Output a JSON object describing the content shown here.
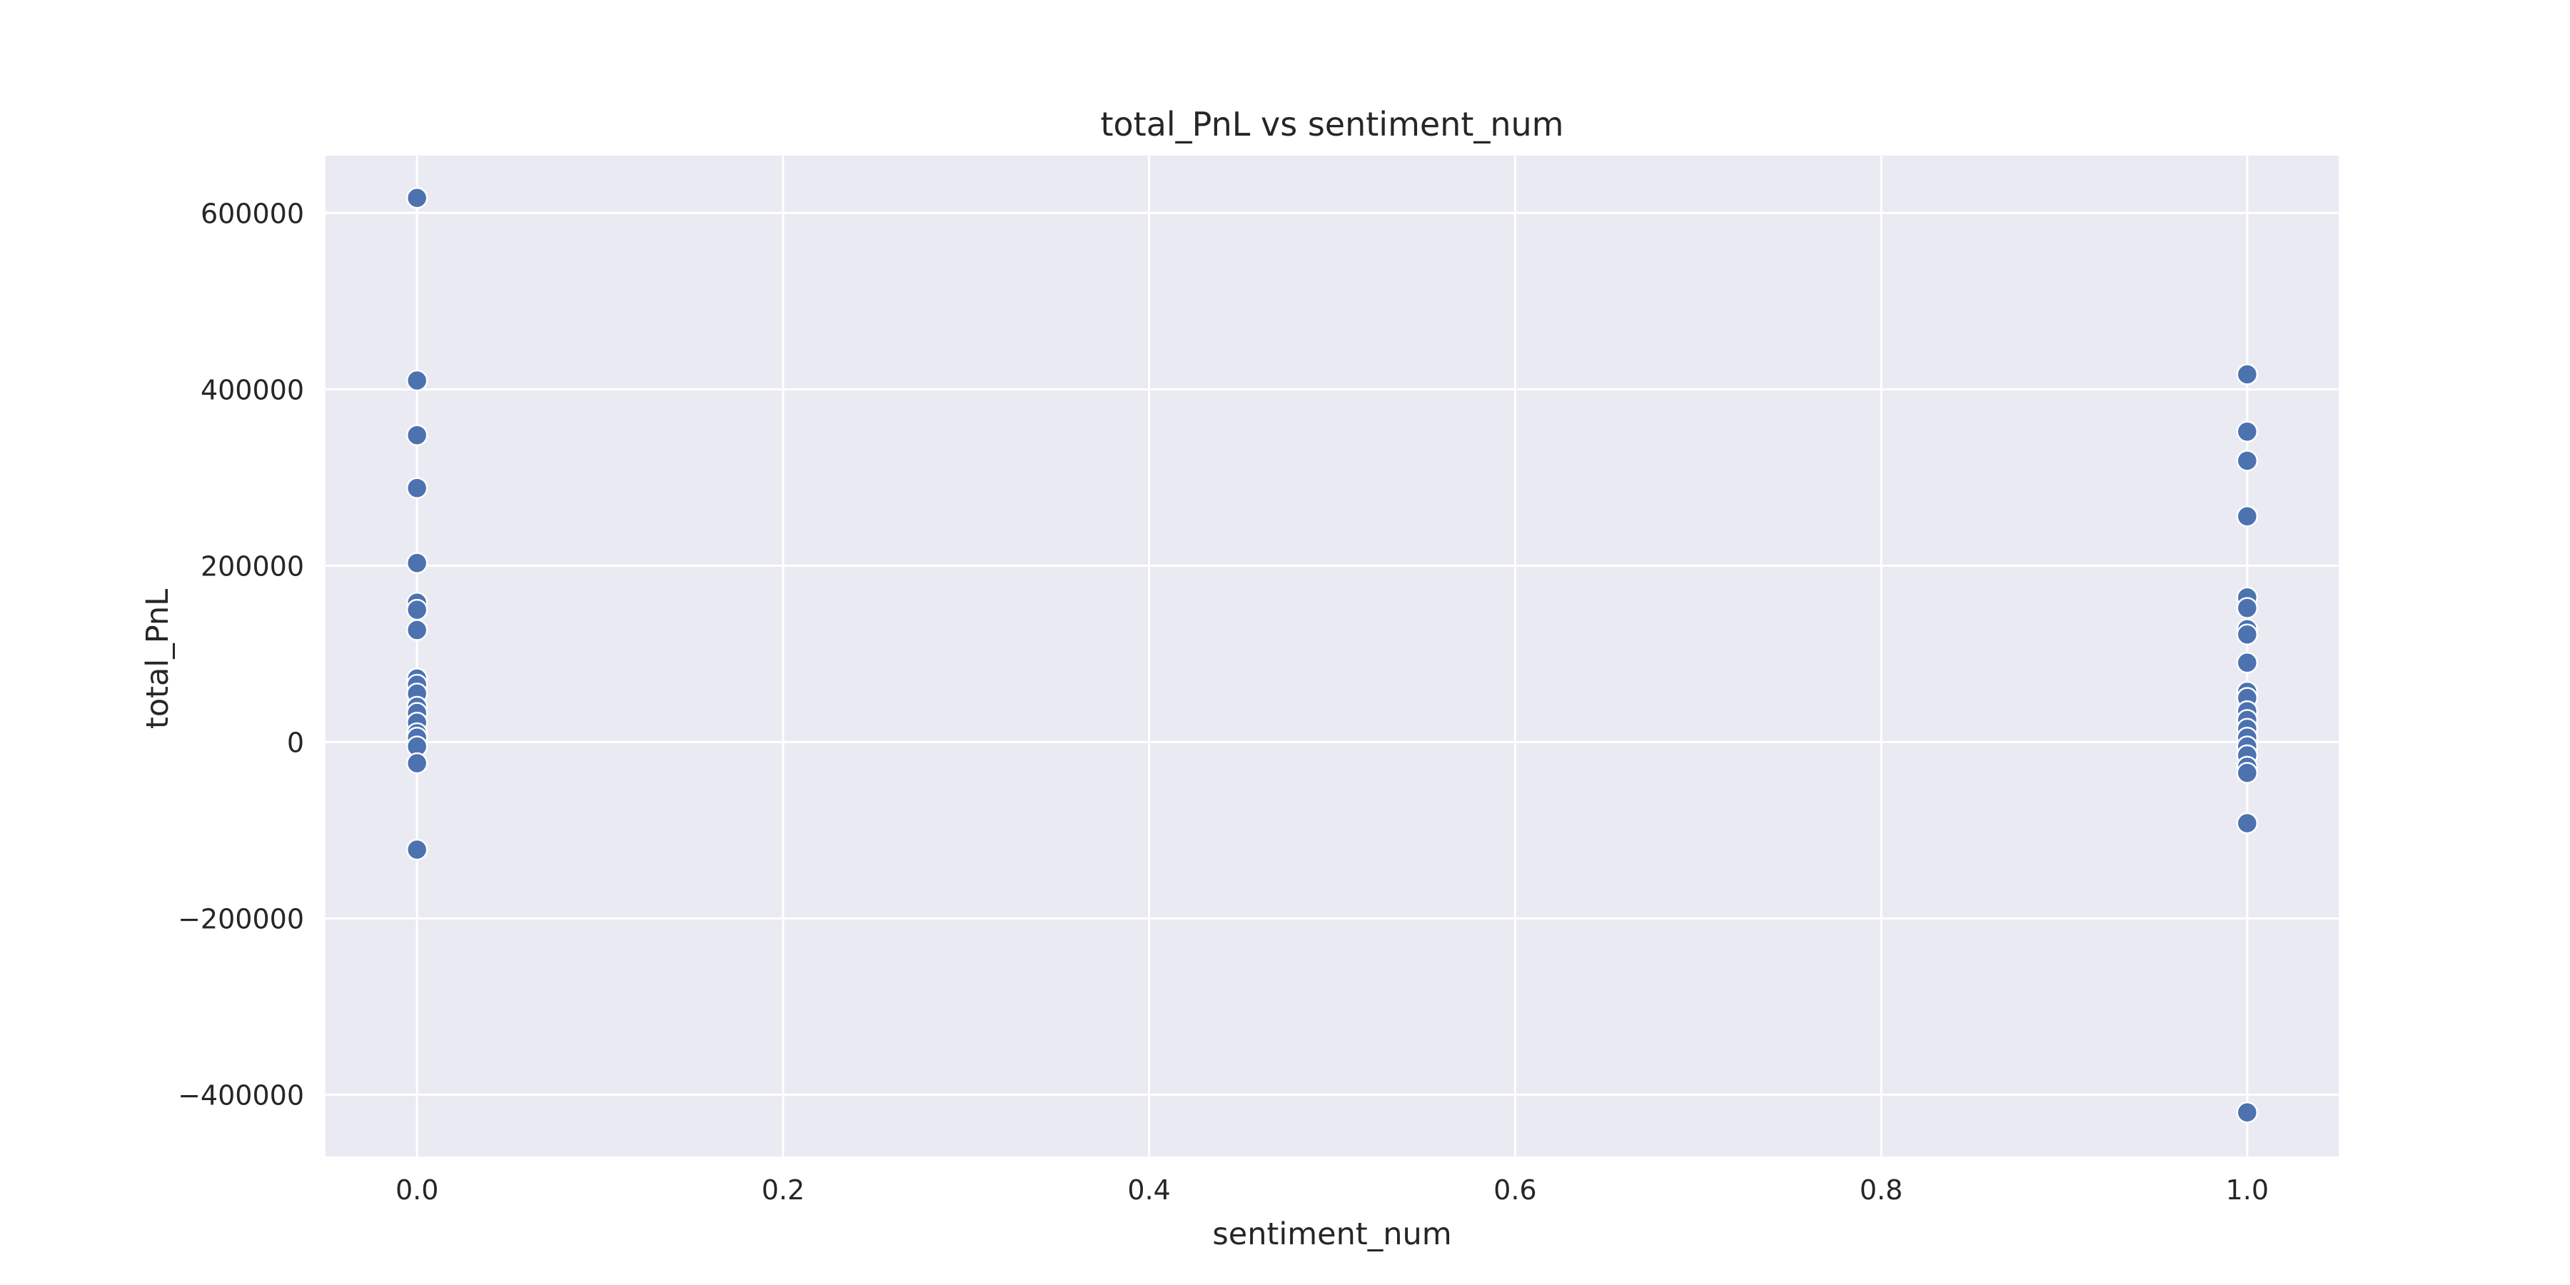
{
  "chart_data": {
    "type": "scatter",
    "title": "total_PnL vs sentiment_num",
    "xlabel": "sentiment_num",
    "ylabel": "total_PnL",
    "xlim": [
      -0.05,
      1.05
    ],
    "ylim": [
      -470000,
      665000
    ],
    "grid": true,
    "x_ticks": [
      0.0,
      0.2,
      0.4,
      0.6,
      0.8,
      1.0
    ],
    "x_tick_labels": [
      "0.0",
      "0.2",
      "0.4",
      "0.6",
      "0.8",
      "1.0"
    ],
    "y_ticks": [
      -400000,
      -200000,
      0,
      200000,
      400000,
      600000
    ],
    "y_tick_labels": [
      "−400000",
      "−200000",
      "0",
      "200000",
      "400000",
      "600000"
    ],
    "colors": {
      "points": "#4c72b0",
      "background": "#eaeaf2",
      "grid": "#ffffff"
    },
    "series": [
      {
        "points": [
          {
            "x": 0,
            "y": 617000
          },
          {
            "x": 0,
            "y": 410000
          },
          {
            "x": 0,
            "y": 348000
          },
          {
            "x": 0,
            "y": 288000
          },
          {
            "x": 0,
            "y": 203000
          },
          {
            "x": 0,
            "y": 158000
          },
          {
            "x": 0,
            "y": 150000
          },
          {
            "x": 0,
            "y": 127000
          },
          {
            "x": 0,
            "y": 72000
          },
          {
            "x": 0,
            "y": 65000
          },
          {
            "x": 0,
            "y": 55000
          },
          {
            "x": 0,
            "y": 40000
          },
          {
            "x": 0,
            "y": 33000
          },
          {
            "x": 0,
            "y": 22000
          },
          {
            "x": 0,
            "y": 10000
          },
          {
            "x": 0,
            "y": 5000
          },
          {
            "x": 0,
            "y": -5000
          },
          {
            "x": 0,
            "y": -24000
          },
          {
            "x": 0,
            "y": -122000
          },
          {
            "x": 1,
            "y": 417000
          },
          {
            "x": 1,
            "y": 352000
          },
          {
            "x": 1,
            "y": 319000
          },
          {
            "x": 1,
            "y": 256000
          },
          {
            "x": 1,
            "y": 164000
          },
          {
            "x": 1,
            "y": 152000
          },
          {
            "x": 1,
            "y": 128000
          },
          {
            "x": 1,
            "y": 122000
          },
          {
            "x": 1,
            "y": 90000
          },
          {
            "x": 1,
            "y": 57000
          },
          {
            "x": 1,
            "y": 50000
          },
          {
            "x": 1,
            "y": 35000
          },
          {
            "x": 1,
            "y": 25000
          },
          {
            "x": 1,
            "y": 15000
          },
          {
            "x": 1,
            "y": 5000
          },
          {
            "x": 1,
            "y": -5000
          },
          {
            "x": 1,
            "y": -15000
          },
          {
            "x": 1,
            "y": -28000
          },
          {
            "x": 1,
            "y": -35000
          },
          {
            "x": 1,
            "y": -92000
          },
          {
            "x": 1,
            "y": -420000
          }
        ]
      }
    ]
  }
}
